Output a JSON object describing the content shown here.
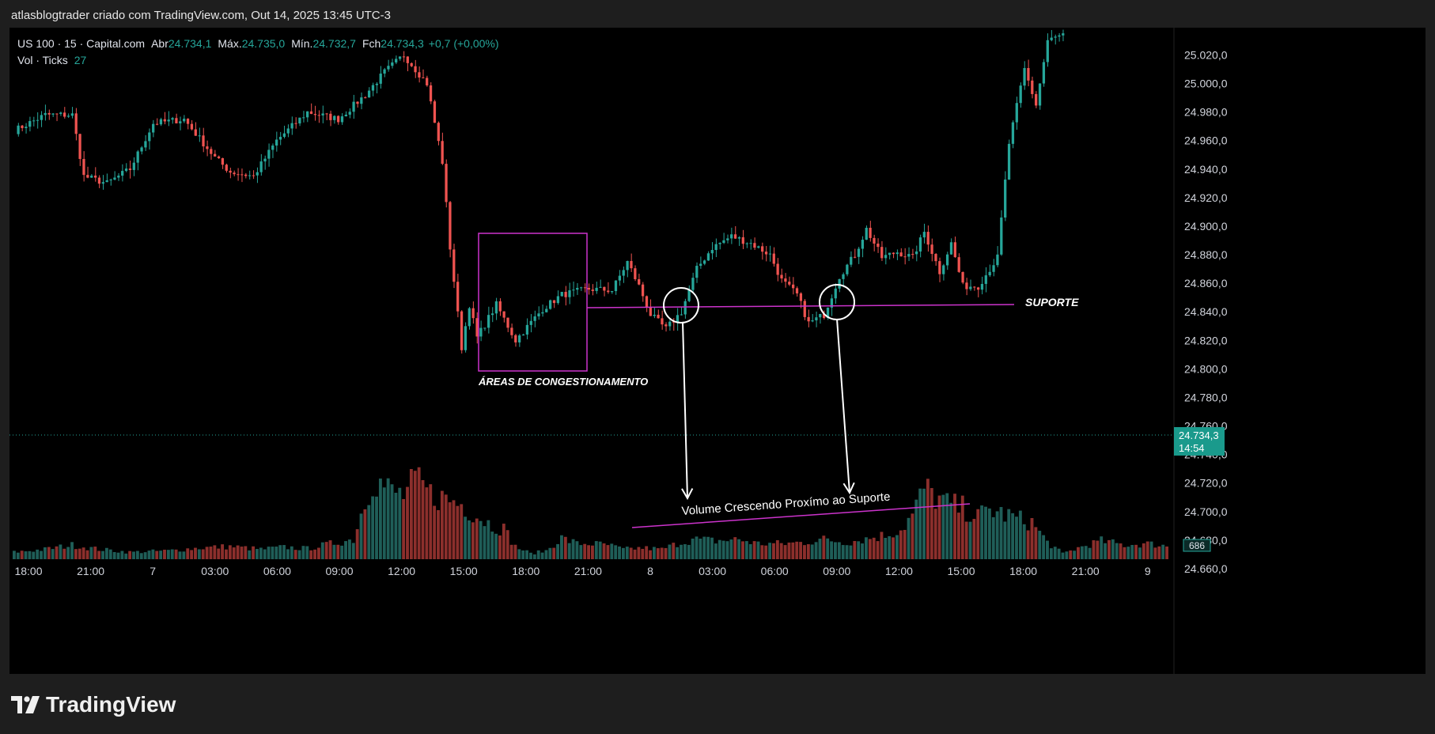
{
  "caption": "atlasblogtrader criado com TradingView.com, Out 14, 2025 13:45 UTC-3",
  "brand": {
    "name": "TradingView",
    "icon": "tradingview-logo-icon"
  },
  "legend": {
    "symbol": "US 100 · 15 · Capital.com",
    "open_label": "Abr",
    "open": "24.734,1",
    "high_label": "Máx.",
    "high": "24.735,0",
    "low_label": "Mín.",
    "low": "24.732,7",
    "close_label": "Fch",
    "close": "24.734,3",
    "change": "+0,7 (+0,00%)",
    "vol_label": "Vol · Ticks",
    "vol": "27"
  },
  "colors": {
    "up": "#26a69a",
    "down": "#ef5350",
    "vol_up": "#1f5e58",
    "vol_down": "#8c2f2c",
    "annotation": "#cc33cc",
    "marker": "#ffffff"
  },
  "annotations": {
    "congestion_label": "ÁREAS DE CONGESTIONAMENTO",
    "support_label": "SUPORTE",
    "volume_label": "Volume Crescendo Proxímo ao Suporte"
  },
  "price_badge": {
    "price": "24.734,3",
    "countdown": "14:54"
  },
  "volume_badge": "686",
  "chart_data": {
    "type": "candlestick",
    "y_ticks": [
      "25.020,0",
      "25.000,0",
      "24.980,0",
      "24.960,0",
      "24.940,0",
      "24.920,0",
      "24.900,0",
      "24.880,0",
      "24.860,0",
      "24.840,0",
      "24.820,0",
      "24.800,0",
      "24.780,0",
      "24.760,0",
      "24.740,0",
      "24.720,0",
      "24.700,0",
      "24.680,0",
      "24.660,0"
    ],
    "ylim": [
      24655,
      25028
    ],
    "x_ticks": [
      "18:00",
      "21:00",
      "7",
      "03:00",
      "06:00",
      "09:00",
      "12:00",
      "15:00",
      "18:00",
      "21:00",
      "8",
      "03:00",
      "06:00",
      "09:00",
      "12:00",
      "15:00",
      "18:00",
      "21:00",
      "9"
    ],
    "close_anchors": [
      [
        0,
        24967
      ],
      [
        8,
        24978
      ],
      [
        15,
        24978
      ],
      [
        18,
        24935
      ],
      [
        24,
        24930
      ],
      [
        30,
        24940
      ],
      [
        36,
        24972
      ],
      [
        44,
        24975
      ],
      [
        52,
        24948
      ],
      [
        56,
        24938
      ],
      [
        62,
        24935
      ],
      [
        68,
        24960
      ],
      [
        76,
        24980
      ],
      [
        84,
        24975
      ],
      [
        91,
        24992
      ],
      [
        96,
        25008
      ],
      [
        101,
        25020
      ],
      [
        107,
        25000
      ],
      [
        111,
        24945
      ],
      [
        113,
        24885
      ],
      [
        116,
        24815
      ],
      [
        118,
        24845
      ],
      [
        120,
        24822
      ],
      [
        125,
        24845
      ],
      [
        130,
        24820
      ],
      [
        137,
        24842
      ],
      [
        142,
        24852
      ],
      [
        149,
        24856
      ],
      [
        155,
        24855
      ],
      [
        159,
        24875
      ],
      [
        162,
        24858
      ],
      [
        165,
        24838
      ],
      [
        169,
        24828
      ],
      [
        173,
        24840
      ],
      [
        177,
        24870
      ],
      [
        181,
        24885
      ],
      [
        186,
        24893
      ],
      [
        191,
        24888
      ],
      [
        196,
        24880
      ],
      [
        199,
        24862
      ],
      [
        203,
        24852
      ],
      [
        206,
        24832
      ],
      [
        210,
        24838
      ],
      [
        214,
        24865
      ],
      [
        218,
        24880
      ],
      [
        221,
        24898
      ],
      [
        225,
        24878
      ],
      [
        229,
        24882
      ],
      [
        233,
        24878
      ],
      [
        236,
        24896
      ],
      [
        240,
        24868
      ],
      [
        243,
        24888
      ],
      [
        246,
        24858
      ],
      [
        250,
        24858
      ],
      [
        255,
        24878
      ],
      [
        258,
        24958
      ],
      [
        262,
        25010
      ],
      [
        265,
        24985
      ],
      [
        268,
        25030
      ],
      [
        273,
        25035
      ]
    ],
    "volume_anchors": [
      [
        0,
        10
      ],
      [
        8,
        14
      ],
      [
        15,
        20
      ],
      [
        22,
        14
      ],
      [
        30,
        10
      ],
      [
        40,
        12
      ],
      [
        48,
        16
      ],
      [
        56,
        18
      ],
      [
        64,
        14
      ],
      [
        70,
        17
      ],
      [
        76,
        15
      ],
      [
        84,
        24
      ],
      [
        88,
        28
      ],
      [
        90,
        65
      ],
      [
        93,
        115
      ],
      [
        98,
        95
      ],
      [
        101,
        90
      ],
      [
        104,
        110
      ],
      [
        108,
        92
      ],
      [
        112,
        85
      ],
      [
        116,
        78
      ],
      [
        120,
        62
      ],
      [
        124,
        48
      ],
      [
        127,
        43
      ],
      [
        130,
        18
      ],
      [
        134,
        8
      ],
      [
        138,
        12
      ],
      [
        142,
        30
      ],
      [
        146,
        22
      ],
      [
        150,
        22
      ],
      [
        154,
        20
      ],
      [
        158,
        14
      ],
      [
        163,
        16
      ],
      [
        168,
        14
      ],
      [
        172,
        22
      ],
      [
        176,
        28
      ],
      [
        182,
        26
      ],
      [
        188,
        28
      ],
      [
        193,
        22
      ],
      [
        200,
        22
      ],
      [
        205,
        24
      ],
      [
        210,
        28
      ],
      [
        216,
        24
      ],
      [
        220,
        28
      ],
      [
        226,
        34
      ],
      [
        230,
        42
      ],
      [
        233,
        62
      ],
      [
        236,
        100
      ],
      [
        239,
        88
      ],
      [
        242,
        78
      ],
      [
        246,
        72
      ],
      [
        250,
        60
      ],
      [
        253,
        70
      ],
      [
        257,
        63
      ],
      [
        261,
        56
      ],
      [
        264,
        52
      ],
      [
        268,
        24
      ],
      [
        272,
        8
      ],
      [
        276,
        16
      ],
      [
        282,
        26
      ],
      [
        288,
        20
      ],
      [
        294,
        22
      ],
      [
        300,
        18
      ]
    ],
    "volume_max": 143
  }
}
